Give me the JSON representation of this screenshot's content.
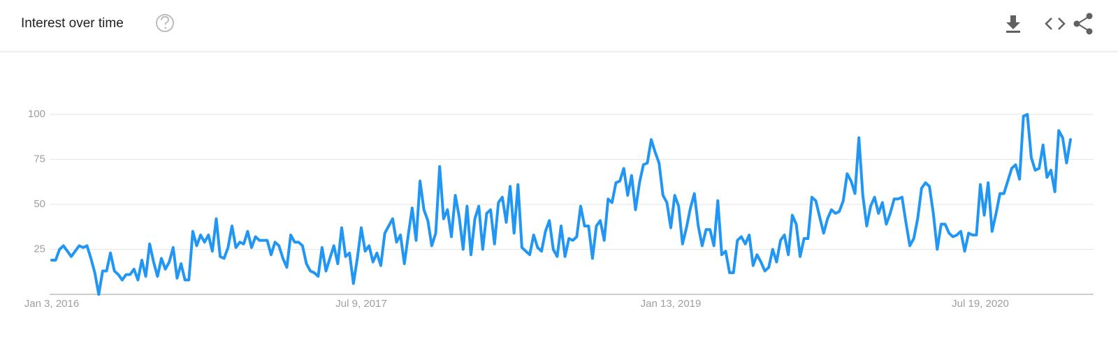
{
  "chart_data": {
    "type": "line",
    "title": "Interest over time",
    "categories": [
      "Jan 3, 2016",
      null,
      null,
      null,
      null,
      null,
      null,
      null,
      null,
      null,
      null,
      null,
      null,
      null,
      null,
      null,
      null,
      null,
      null,
      null,
      null,
      null,
      null,
      null,
      null,
      null,
      null,
      null,
      null,
      null,
      null,
      null,
      null,
      null,
      null,
      null,
      null,
      null,
      null,
      null,
      null,
      null,
      null,
      null,
      null,
      null,
      null,
      null,
      null,
      null,
      null,
      null,
      null,
      null,
      null,
      null,
      null,
      null,
      null,
      null,
      null,
      null,
      null,
      null,
      null,
      null,
      null,
      null,
      null,
      null,
      null,
      null,
      null,
      null,
      null,
      null,
      null,
      null,
      null,
      "Jul 9, 2017",
      null,
      null,
      null,
      null,
      null,
      null,
      null,
      null,
      null,
      null,
      null,
      null,
      null,
      null,
      null,
      null,
      null,
      null,
      null,
      null,
      null,
      null,
      null,
      null,
      null,
      null,
      null,
      null,
      null,
      null,
      null,
      null,
      null,
      null,
      null,
      null,
      null,
      null,
      null,
      null,
      null,
      null,
      null,
      null,
      null,
      null,
      null,
      null,
      null,
      null,
      null,
      null,
      null,
      null,
      null,
      null,
      null,
      null,
      null,
      null,
      null,
      null,
      null,
      null,
      null,
      null,
      null,
      null,
      null,
      null,
      null,
      null,
      null,
      null,
      null,
      null,
      null,
      null,
      "Jan 13, 2019",
      null,
      null,
      null,
      null,
      null,
      null,
      null,
      null,
      null,
      null,
      null,
      null,
      null,
      null,
      null,
      null,
      null,
      null,
      null,
      null,
      null,
      null,
      null,
      null,
      null,
      null,
      null,
      null,
      null,
      null,
      null,
      null,
      null,
      null,
      null,
      null,
      null,
      null,
      null,
      null,
      null,
      null,
      null,
      null,
      null,
      null,
      null,
      null,
      null,
      null,
      null,
      null,
      null,
      null,
      null,
      null,
      null,
      null,
      null,
      null,
      null,
      null,
      null,
      null,
      null,
      null,
      null,
      null,
      null,
      null,
      null,
      null,
      null,
      null,
      null,
      null,
      null,
      null,
      "Jul 19, 2020",
      null,
      null,
      null,
      null,
      null,
      null,
      null,
      null,
      null,
      null,
      null,
      null,
      null,
      null,
      null,
      null,
      null,
      null,
      null,
      null,
      null,
      null,
      null
    ],
    "values": [
      19,
      19,
      25,
      27,
      24,
      21,
      24,
      27,
      26,
      27,
      20,
      12,
      0,
      13,
      13,
      23,
      13,
      11,
      8,
      11,
      11,
      14,
      8,
      19,
      10,
      28,
      18,
      10,
      20,
      14,
      18,
      26,
      9,
      17,
      8,
      8,
      35,
      27,
      33,
      29,
      33,
      24,
      42,
      21,
      20,
      26,
      38,
      26,
      29,
      28,
      35,
      26,
      32,
      30,
      30,
      30,
      22,
      29,
      27,
      20,
      15,
      33,
      29,
      29,
      27,
      17,
      13,
      12,
      10,
      26,
      13,
      20,
      27,
      17,
      37,
      21,
      23,
      6,
      20,
      37,
      24,
      27,
      18,
      23,
      16,
      34,
      38,
      42,
      29,
      33,
      17,
      33,
      48,
      30,
      63,
      47,
      41,
      27,
      34,
      71,
      42,
      47,
      32,
      55,
      43,
      25,
      49,
      22,
      42,
      49,
      25,
      45,
      47,
      28,
      51,
      54,
      40,
      60,
      34,
      61,
      26,
      24,
      22,
      33,
      26,
      24,
      35,
      41,
      25,
      21,
      38,
      21,
      31,
      30,
      32,
      49,
      38,
      38,
      20,
      38,
      41,
      30,
      53,
      51,
      62,
      63,
      70,
      55,
      66,
      47,
      62,
      72,
      73,
      86,
      79,
      73,
      55,
      51,
      37,
      55,
      49,
      28,
      37,
      48,
      56,
      38,
      27,
      36,
      36,
      27,
      52,
      22,
      24,
      12,
      12,
      30,
      32,
      28,
      33,
      16,
      22,
      18,
      13,
      15,
      25,
      18,
      30,
      33,
      22,
      44,
      39,
      21,
      31,
      31,
      54,
      52,
      43,
      34,
      42,
      47,
      45,
      46,
      52,
      67,
      63,
      56,
      87,
      55,
      38,
      49,
      54,
      45,
      51,
      39,
      45,
      53,
      53,
      54,
      40,
      27,
      31,
      42,
      59,
      62,
      60,
      45,
      25,
      39,
      39,
      34,
      32,
      33,
      35,
      24,
      34,
      33,
      33,
      61,
      44,
      62,
      35,
      45,
      56,
      56,
      63,
      70,
      72,
      64,
      99,
      100,
      76,
      69,
      70,
      83,
      65,
      69,
      57,
      91,
      87,
      73,
      86
    ],
    "color": "#2196f3",
    "ylim": [
      0,
      100
    ],
    "yticks": [
      25,
      50,
      75,
      100
    ],
    "grid": true
  }
}
